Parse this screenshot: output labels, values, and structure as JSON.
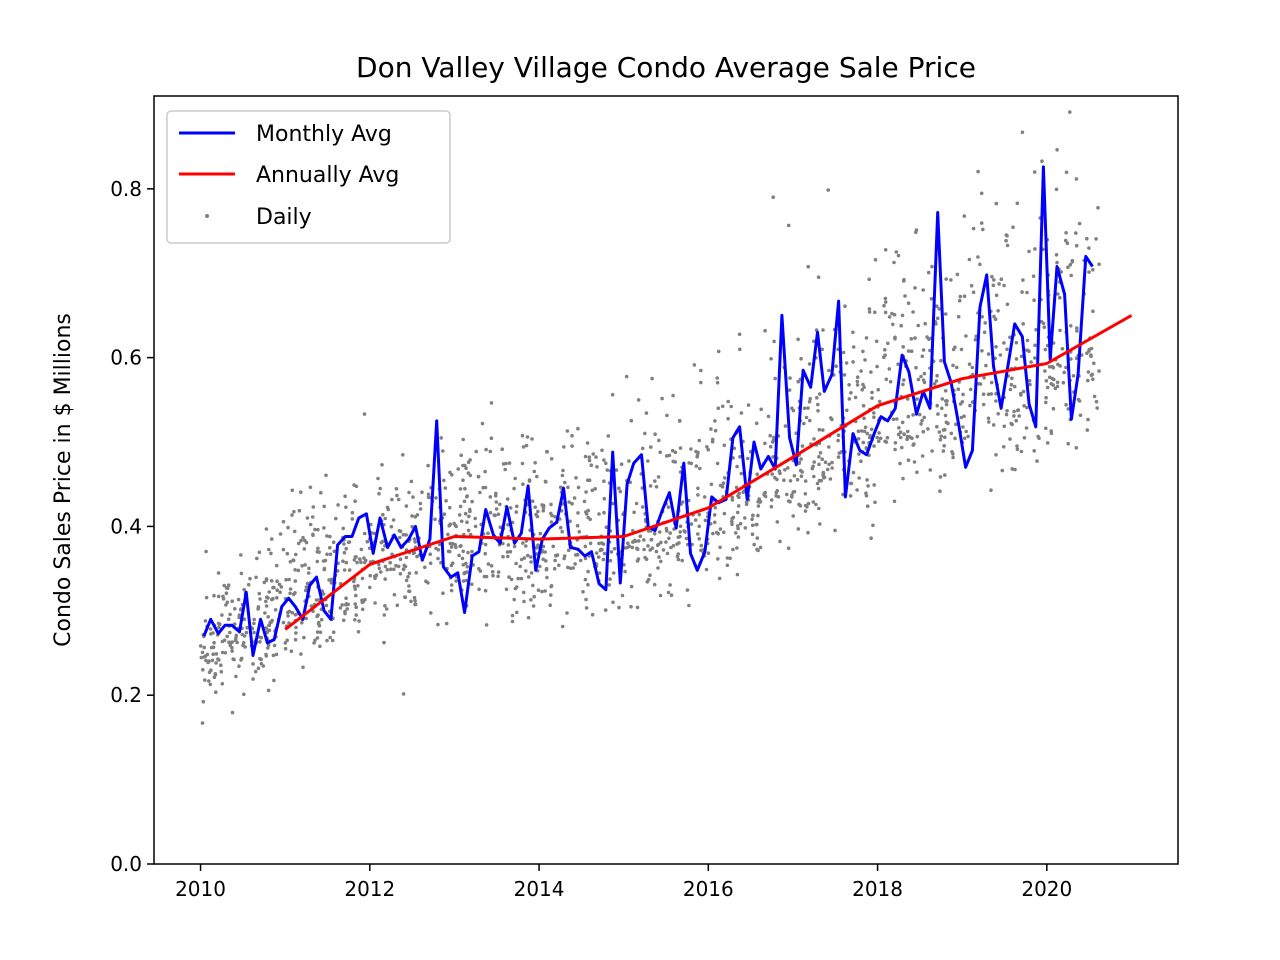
{
  "chart_data": {
    "type": "line",
    "title": "Don Valley Village Condo Average Sale Price",
    "xlabel": "",
    "ylabel": "Condo Sales Price in $ Millions",
    "xlim": [
      2009.45,
      2021.55
    ],
    "ylim": [
      0.0,
      0.91
    ],
    "xticks": [
      2010,
      2012,
      2014,
      2016,
      2018,
      2020
    ],
    "xtick_labels": [
      "2010",
      "2012",
      "2014",
      "2016",
      "2018",
      "2020"
    ],
    "yticks": [
      0.0,
      0.2,
      0.4,
      0.6,
      0.8
    ],
    "ytick_labels": [
      "0.0",
      "0.2",
      "0.4",
      "0.6",
      "0.8"
    ],
    "grid": false,
    "legend_position": "top-left",
    "legend": [
      "Monthly Avg",
      "Annually Avg",
      "Daily"
    ],
    "series": [
      {
        "name": "Monthly Avg",
        "color": "#0000ff",
        "style": "line",
        "points": [
          [
            2010.04,
            0.27
          ],
          [
            2010.12,
            0.29
          ],
          [
            2010.21,
            0.273
          ],
          [
            2010.29,
            0.283
          ],
          [
            2010.37,
            0.283
          ],
          [
            2010.46,
            0.275
          ],
          [
            2010.54,
            0.322
          ],
          [
            2010.62,
            0.247
          ],
          [
            2010.71,
            0.29
          ],
          [
            2010.79,
            0.262
          ],
          [
            2010.87,
            0.266
          ],
          [
            2010.96,
            0.305
          ],
          [
            2011.04,
            0.315
          ],
          [
            2011.12,
            0.305
          ],
          [
            2011.21,
            0.29
          ],
          [
            2011.29,
            0.33
          ],
          [
            2011.37,
            0.34
          ],
          [
            2011.46,
            0.3
          ],
          [
            2011.54,
            0.29
          ],
          [
            2011.62,
            0.378
          ],
          [
            2011.71,
            0.388
          ],
          [
            2011.79,
            0.388
          ],
          [
            2011.87,
            0.41
          ],
          [
            2011.96,
            0.415
          ],
          [
            2012.04,
            0.368
          ],
          [
            2012.12,
            0.41
          ],
          [
            2012.21,
            0.375
          ],
          [
            2012.29,
            0.39
          ],
          [
            2012.37,
            0.375
          ],
          [
            2012.46,
            0.385
          ],
          [
            2012.54,
            0.4
          ],
          [
            2012.62,
            0.36
          ],
          [
            2012.71,
            0.385
          ],
          [
            2012.79,
            0.525
          ],
          [
            2012.87,
            0.352
          ],
          [
            2012.96,
            0.34
          ],
          [
            2013.04,
            0.345
          ],
          [
            2013.12,
            0.298
          ],
          [
            2013.21,
            0.365
          ],
          [
            2013.29,
            0.37
          ],
          [
            2013.37,
            0.42
          ],
          [
            2013.46,
            0.39
          ],
          [
            2013.54,
            0.38
          ],
          [
            2013.62,
            0.423
          ],
          [
            2013.71,
            0.38
          ],
          [
            2013.79,
            0.392
          ],
          [
            2013.87,
            0.448
          ],
          [
            2013.96,
            0.348
          ],
          [
            2014.04,
            0.385
          ],
          [
            2014.12,
            0.398
          ],
          [
            2014.21,
            0.405
          ],
          [
            2014.29,
            0.445
          ],
          [
            2014.37,
            0.375
          ],
          [
            2014.46,
            0.373
          ],
          [
            2014.54,
            0.365
          ],
          [
            2014.62,
            0.37
          ],
          [
            2014.71,
            0.332
          ],
          [
            2014.79,
            0.325
          ],
          [
            2014.87,
            0.488
          ],
          [
            2014.96,
            0.333
          ],
          [
            2015.04,
            0.45
          ],
          [
            2015.12,
            0.475
          ],
          [
            2015.21,
            0.485
          ],
          [
            2015.29,
            0.4
          ],
          [
            2015.37,
            0.395
          ],
          [
            2015.46,
            0.42
          ],
          [
            2015.54,
            0.44
          ],
          [
            2015.62,
            0.398
          ],
          [
            2015.71,
            0.475
          ],
          [
            2015.79,
            0.368
          ],
          [
            2015.87,
            0.348
          ],
          [
            2015.96,
            0.37
          ],
          [
            2016.04,
            0.435
          ],
          [
            2016.12,
            0.428
          ],
          [
            2016.21,
            0.432
          ],
          [
            2016.29,
            0.505
          ],
          [
            2016.37,
            0.518
          ],
          [
            2016.46,
            0.432
          ],
          [
            2016.54,
            0.5
          ],
          [
            2016.62,
            0.468
          ],
          [
            2016.71,
            0.483
          ],
          [
            2016.79,
            0.468
          ],
          [
            2016.87,
            0.65
          ],
          [
            2016.96,
            0.505
          ],
          [
            2017.04,
            0.473
          ],
          [
            2017.12,
            0.585
          ],
          [
            2017.21,
            0.565
          ],
          [
            2017.29,
            0.63
          ],
          [
            2017.37,
            0.56
          ],
          [
            2017.46,
            0.58
          ],
          [
            2017.54,
            0.667
          ],
          [
            2017.62,
            0.435
          ],
          [
            2017.71,
            0.51
          ],
          [
            2017.79,
            0.49
          ],
          [
            2017.87,
            0.485
          ],
          [
            2017.96,
            0.51
          ],
          [
            2018.04,
            0.53
          ],
          [
            2018.12,
            0.525
          ],
          [
            2018.21,
            0.54
          ],
          [
            2018.29,
            0.603
          ],
          [
            2018.37,
            0.583
          ],
          [
            2018.46,
            0.533
          ],
          [
            2018.54,
            0.56
          ],
          [
            2018.62,
            0.54
          ],
          [
            2018.71,
            0.772
          ],
          [
            2018.79,
            0.595
          ],
          [
            2018.87,
            0.57
          ],
          [
            2018.96,
            0.52
          ],
          [
            2019.04,
            0.47
          ],
          [
            2019.12,
            0.49
          ],
          [
            2019.21,
            0.66
          ],
          [
            2019.29,
            0.698
          ],
          [
            2019.37,
            0.59
          ],
          [
            2019.46,
            0.54
          ],
          [
            2019.54,
            0.59
          ],
          [
            2019.62,
            0.64
          ],
          [
            2019.71,
            0.625
          ],
          [
            2019.79,
            0.545
          ],
          [
            2019.87,
            0.518
          ],
          [
            2019.96,
            0.826
          ],
          [
            2020.04,
            0.598
          ],
          [
            2020.12,
            0.708
          ],
          [
            2020.21,
            0.675
          ],
          [
            2020.29,
            0.527
          ],
          [
            2020.37,
            0.58
          ],
          [
            2020.46,
            0.72
          ],
          [
            2020.54,
            0.708
          ]
        ]
      },
      {
        "name": "Annually Avg",
        "color": "#ff0000",
        "style": "line",
        "points": [
          [
            2011.0,
            0.278
          ],
          [
            2012.0,
            0.355
          ],
          [
            2013.0,
            0.388
          ],
          [
            2014.0,
            0.385
          ],
          [
            2015.0,
            0.388
          ],
          [
            2016.0,
            0.422
          ],
          [
            2017.0,
            0.482
          ],
          [
            2018.0,
            0.543
          ],
          [
            2019.0,
            0.575
          ],
          [
            2020.0,
            0.593
          ],
          [
            2021.0,
            0.65
          ]
        ]
      },
      {
        "name": "Daily",
        "color": "#808080",
        "style": "scatter",
        "generated": true,
        "trend_points": [
          [
            2010.0,
            0.25
          ],
          [
            2011.0,
            0.3
          ],
          [
            2012.0,
            0.355
          ],
          [
            2013.0,
            0.385
          ],
          [
            2014.0,
            0.38
          ],
          [
            2015.0,
            0.385
          ],
          [
            2016.0,
            0.42
          ],
          [
            2017.0,
            0.48
          ],
          [
            2018.0,
            0.54
          ],
          [
            2019.0,
            0.57
          ],
          [
            2020.0,
            0.59
          ],
          [
            2020.6,
            0.61
          ]
        ],
        "x_range": [
          2010.0,
          2020.62
        ],
        "count": 1900
      }
    ]
  }
}
